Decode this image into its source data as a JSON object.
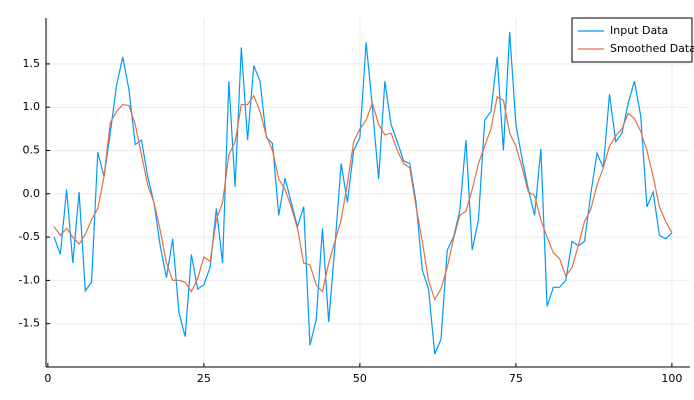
{
  "chart_data": {
    "type": "line",
    "x": [
      1,
      2,
      3,
      4,
      5,
      6,
      7,
      8,
      9,
      10,
      11,
      12,
      13,
      14,
      15,
      16,
      17,
      18,
      19,
      20,
      21,
      22,
      23,
      24,
      25,
      26,
      27,
      28,
      29,
      30,
      31,
      32,
      33,
      34,
      35,
      36,
      37,
      38,
      39,
      40,
      41,
      42,
      43,
      44,
      45,
      46,
      47,
      48,
      49,
      50,
      51,
      52,
      53,
      54,
      55,
      56,
      57,
      58,
      59,
      60,
      61,
      62,
      63,
      64,
      65,
      66,
      67,
      68,
      69,
      70,
      71,
      72,
      73,
      74,
      75,
      76,
      77,
      78,
      79,
      80,
      81,
      82,
      83,
      84,
      85,
      86,
      87,
      88,
      89,
      90,
      91,
      92,
      93,
      94,
      95,
      96,
      97,
      98,
      99,
      100
    ],
    "series": [
      {
        "name": "Input Data",
        "color": "#009af9",
        "values": [
          -0.5,
          -0.7,
          0.05,
          -0.8,
          0.02,
          -1.12,
          -1.02,
          0.48,
          0.2,
          0.7,
          1.25,
          1.58,
          1.2,
          0.57,
          0.62,
          0.2,
          -0.1,
          -0.6,
          -0.97,
          -0.52,
          -1.37,
          -1.65,
          -0.7,
          -1.1,
          -1.05,
          -0.85,
          -0.17,
          -0.8,
          1.3,
          0.08,
          1.69,
          0.62,
          1.48,
          1.3,
          0.65,
          0.58,
          -0.25,
          0.18,
          -0.1,
          -0.38,
          -0.15,
          -1.75,
          -1.45,
          -0.4,
          -1.48,
          -0.6,
          0.35,
          -0.1,
          0.5,
          0.65,
          1.75,
          1.0,
          0.17,
          1.3,
          0.8,
          0.6,
          0.38,
          0.35,
          -0.1,
          -0.88,
          -1.1,
          -1.85,
          -1.68,
          -0.65,
          -0.5,
          -0.2,
          0.62,
          -0.65,
          -0.3,
          0.85,
          0.95,
          1.58,
          0.5,
          1.87,
          0.8,
          0.4,
          0.05,
          -0.25,
          0.52,
          -1.3,
          -1.08,
          -1.08,
          -1.0,
          -0.55,
          -0.6,
          -0.55,
          0.0,
          0.47,
          0.3,
          1.15,
          0.6,
          0.7,
          1.05,
          1.3,
          0.9,
          -0.15,
          0.02,
          -0.48,
          -0.52,
          -0.45
        ]
      },
      {
        "name": "Smoothed Data",
        "color": "#e26f46",
        "values": [
          -0.38,
          -0.48,
          -0.4,
          -0.5,
          -0.58,
          -0.47,
          -0.3,
          -0.17,
          0.2,
          0.82,
          0.95,
          1.03,
          1.02,
          0.8,
          0.45,
          0.1,
          -0.1,
          -0.42,
          -0.8,
          -1.0,
          -1.0,
          -1.02,
          -1.13,
          -0.98,
          -0.73,
          -0.78,
          -0.3,
          -0.1,
          0.45,
          0.6,
          1.03,
          1.03,
          1.13,
          0.95,
          0.67,
          0.5,
          0.17,
          0.05,
          -0.15,
          -0.4,
          -0.8,
          -0.82,
          -1.05,
          -1.13,
          -0.8,
          -0.55,
          -0.3,
          0.12,
          0.6,
          0.75,
          0.85,
          1.05,
          0.8,
          0.68,
          0.7,
          0.5,
          0.35,
          0.3,
          -0.15,
          -0.55,
          -1.0,
          -1.22,
          -1.1,
          -0.85,
          -0.52,
          -0.25,
          -0.2,
          0.05,
          0.35,
          0.55,
          0.75,
          1.12,
          1.08,
          0.7,
          0.55,
          0.3,
          0.02,
          -0.02,
          -0.3,
          -0.5,
          -0.68,
          -0.75,
          -0.95,
          -0.85,
          -0.6,
          -0.32,
          -0.18,
          0.1,
          0.3,
          0.55,
          0.67,
          0.75,
          0.93,
          0.87,
          0.72,
          0.5,
          0.2,
          -0.15,
          -0.32,
          -0.45
        ]
      }
    ],
    "xlim": [
      -0.3,
      102.9
    ],
    "ylim": [
      -2.0,
      2.03
    ],
    "xticks": [
      0,
      25,
      50,
      75,
      100
    ],
    "yticks": [
      {
        "value": 1.5,
        "label": "1.5"
      },
      {
        "value": 1.0,
        "label": "1.0"
      },
      {
        "value": 0.5,
        "label": "0.5"
      },
      {
        "value": 0.0,
        "label": "0.0"
      },
      {
        "value": -0.5,
        "label": "-0.5"
      },
      {
        "value": -1.0,
        "label": "-1.0"
      },
      {
        "value": -1.5,
        "label": "-1.5"
      }
    ],
    "grid": true,
    "legend": "top-right"
  }
}
